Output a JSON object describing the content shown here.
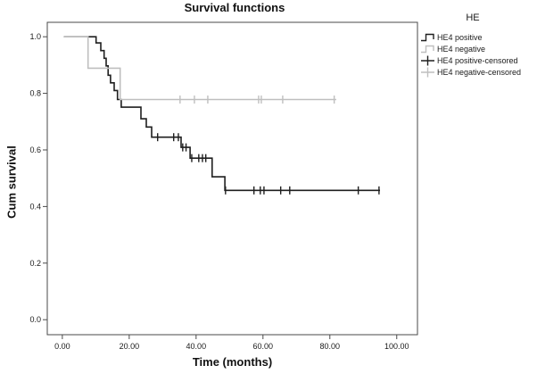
{
  "title": "Survival functions",
  "axes": {
    "x_label": "Time (months)",
    "y_label": "Cum survival"
  },
  "legend": {
    "title": "HE",
    "entries": [
      {
        "label": "HE4 positive",
        "icon": "step-line-icon",
        "color": "#1f1f1f"
      },
      {
        "label": "HE4 negative",
        "icon": "step-line-icon",
        "color": "#bfbfbf"
      },
      {
        "label": "HE4 positive-censored",
        "icon": "plus-icon",
        "color": "#1f1f1f"
      },
      {
        "label": "HE4 negative-censored",
        "icon": "plus-icon",
        "color": "#bfbfbf"
      }
    ]
  },
  "colors": {
    "positive_curve": "#1f1f1f",
    "negative_curve": "#bfbfbf",
    "frame": "#4a4a4a",
    "tick_text": "#1a1a1a",
    "background": "#ffffff"
  },
  "chart_data": {
    "type": "line",
    "subtype": "kaplan-meier-step",
    "title": "Survival functions",
    "xlabel": "Time (months)",
    "ylabel": "Cum survival",
    "xlim": [
      -4.5,
      106.2
    ],
    "ylim": [
      -0.053,
      1.051
    ],
    "grid": false,
    "legend_position": "right-top",
    "x_ticks": [
      {
        "v": 0,
        "label": "0.00"
      },
      {
        "v": 20,
        "label": "20.00"
      },
      {
        "v": 40,
        "label": "40.00"
      },
      {
        "v": 60,
        "label": "60.00"
      },
      {
        "v": 80,
        "label": "80.00"
      },
      {
        "v": 100,
        "label": "100.00"
      }
    ],
    "y_ticks": [
      {
        "v": 0.0,
        "label": "0.0"
      },
      {
        "v": 0.2,
        "label": "0.2"
      },
      {
        "v": 0.4,
        "label": "0.4"
      },
      {
        "v": 0.6,
        "label": "0.6"
      },
      {
        "v": 0.8,
        "label": "0.8"
      },
      {
        "v": 1.0,
        "label": "1.0"
      }
    ],
    "series": [
      {
        "name": "HE4 positive",
        "color": "#1f1f1f",
        "line_width": 1.6,
        "start": 0.5,
        "end": 95.0,
        "steps": [
          [
            10.1,
            0.978
          ],
          [
            11.5,
            0.951
          ],
          [
            12.5,
            0.924
          ],
          [
            13.1,
            0.897
          ],
          [
            13.7,
            0.864
          ],
          [
            14.4,
            0.837
          ],
          [
            15.5,
            0.81
          ],
          [
            16.5,
            0.778
          ],
          [
            17.6,
            0.751
          ],
          [
            23.5,
            0.71
          ],
          [
            25.1,
            0.681
          ],
          [
            26.7,
            0.645
          ],
          [
            35.5,
            0.609
          ],
          [
            38.2,
            0.571
          ],
          [
            44.8,
            0.505
          ],
          [
            48.6,
            0.457
          ]
        ],
        "censored_times": [
          28.5,
          33.3,
          34.7,
          36.0,
          37.0,
          38.7,
          40.8,
          41.9,
          42.9,
          48.8,
          57.3,
          59.2,
          60.3,
          65.3,
          68.0,
          88.5,
          94.7
        ]
      },
      {
        "name": "HE4 negative",
        "color": "#bfbfbf",
        "line_width": 1.6,
        "start": 0.5,
        "end": 81.9,
        "steps": [
          [
            7.7,
            0.889
          ],
          [
            17.3,
            0.778
          ]
        ],
        "censored_times": [
          35.2,
          39.5,
          43.5,
          58.7,
          59.5,
          65.9,
          81.3
        ]
      }
    ]
  }
}
